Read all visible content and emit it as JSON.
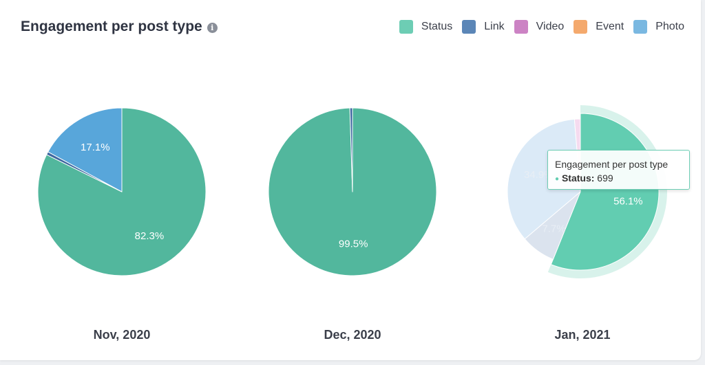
{
  "header": {
    "title": "Engagement per post type",
    "info_icon": "info-icon"
  },
  "legend": [
    {
      "label": "Status",
      "color": "#6dcdb4"
    },
    {
      "label": "Link",
      "color": "#5b86b7"
    },
    {
      "label": "Video",
      "color": "#cc83c4"
    },
    {
      "label": "Event",
      "color": "#f4a96d"
    },
    {
      "label": "Photo",
      "color": "#7ab8e1"
    }
  ],
  "tooltip": {
    "title": "Engagement per post type",
    "series": "Status:",
    "value": "699"
  },
  "chart_data": [
    {
      "type": "pie",
      "title": "Nov, 2020",
      "slices": [
        {
          "name": "Status",
          "value": 82.3,
          "color": "#52b79d",
          "label": "82.3%"
        },
        {
          "name": "Link",
          "value": 0.6,
          "color": "#3f68a0",
          "label": ""
        },
        {
          "name": "Photo",
          "value": 17.1,
          "color": "#58a6da",
          "label": "17.1%"
        }
      ]
    },
    {
      "type": "pie",
      "title": "Dec, 2020",
      "slices": [
        {
          "name": "Status",
          "value": 99.5,
          "color": "#52b79d",
          "label": "99.5%"
        },
        {
          "name": "Link",
          "value": 0.5,
          "color": "#3f68a0",
          "label": ""
        }
      ]
    },
    {
      "type": "pie",
      "title": "Jan, 2021",
      "hovered": "Status",
      "slices": [
        {
          "name": "Status",
          "value": 56.1,
          "color": "#62cdb1",
          "label": "56.1%"
        },
        {
          "name": "Link",
          "value": 7.7,
          "color": "#dbe3ee",
          "label": "7.7%"
        },
        {
          "name": "Photo",
          "value": 34.9,
          "color": "#dbeaf7",
          "label": "34.9%"
        },
        {
          "name": "Video",
          "value": 1.3,
          "color": "#f5dbef",
          "label": ""
        }
      ]
    }
  ]
}
